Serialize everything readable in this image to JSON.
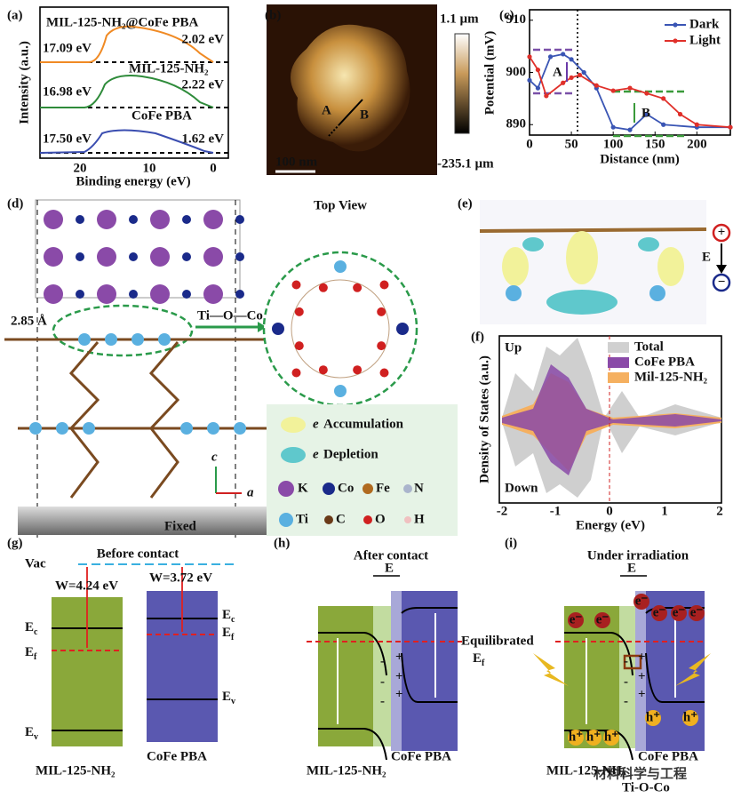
{
  "figure": {
    "panel_labels": [
      "(a)",
      "(b)",
      "(c)",
      "(d)",
      "(e)",
      "(f)",
      "(g)",
      "(h)",
      "(i)"
    ],
    "a": {
      "curves": [
        "MIL-125-NH₂@CoFe PBA",
        "MIL-125-NH₂",
        "CoFe PBA"
      ],
      "left_values": [
        "17.09 eV",
        "16.98 eV",
        "17.50 eV"
      ],
      "right_values": [
        "2.02 eV",
        "2.22 eV",
        "1.62 eV"
      ],
      "y_label": "Intensity (a.u.)",
      "x_label": "Binding energy (eV)",
      "x_ticks": [
        "20",
        "10",
        "0"
      ]
    },
    "b": {
      "colorbar_max": "1.1 µm",
      "colorbar_min": "-235.1 µm",
      "scale_bar": "100 nm",
      "marker_a": "A",
      "marker_b": "B"
    },
    "d": {
      "top_view": "Top View",
      "distance": "2.85 Å",
      "bond": "Ti—O—Co",
      "e": "e",
      "accumulation": "Accumulation",
      "depletion": "Depletion",
      "atoms": [
        "K",
        "Co",
        "Fe",
        "N",
        "Ti",
        "C",
        "O",
        "H"
      ],
      "fixed": "Fixed",
      "axis_c": "c",
      "axis_a": "a"
    },
    "e": {
      "field": "E",
      "plus": "+",
      "minus": "−"
    },
    "f": {
      "up": "Up",
      "down": "Down",
      "legend": [
        "Total",
        "CoFe PBA",
        "Mil-125-NH₂"
      ],
      "y_label": "Density of States (a.u.)",
      "x_label": "Energy (eV)",
      "x_ticks": [
        "-2",
        "-1",
        "0",
        "1",
        "2"
      ]
    },
    "g": {
      "title": "Before contact",
      "vac": "Vac",
      "w_left": "W=4.24 eV",
      "w_right": "W=3.72 eV",
      "ec": {
        "text": "E",
        "sub": "c"
      },
      "ef": {
        "text": "E",
        "sub": "f"
      },
      "ev": {
        "text": "E",
        "sub": "v"
      },
      "left": "MIL-125-NH₂",
      "right": "CoFe PBA"
    },
    "h": {
      "title": "After contact",
      "field": "E",
      "equilibrated": "Equilibrated",
      "ef": {
        "text": "E",
        "sub": "f"
      },
      "minus": "-",
      "plus": "+",
      "left": "MIL-125-NH₂",
      "right": "CoFe PBA"
    },
    "i": {
      "title": "Under irradiation",
      "field": "E",
      "electron": "e⁻",
      "hole": "h⁺",
      "minus": "-",
      "plus": "+",
      "left": "MIL-125-NH₂",
      "right": "CoFe PBA",
      "bond": "Ti-O-Co",
      "watermark": "材料科学与工程"
    }
  },
  "chart_data": {
    "type": "line",
    "x_label": "Distance (nm)",
    "y_label": "Potential (mV)",
    "xlim": [
      0,
      240
    ],
    "ylim": [
      888,
      912
    ],
    "xticks": [
      0,
      50,
      100,
      150,
      200
    ],
    "yticks": [
      890,
      900,
      910
    ],
    "legend": "upper right",
    "annotations": [
      "A",
      "B"
    ],
    "series": [
      {
        "name": "Dark",
        "color": "#3a55b4",
        "x": [
          0,
          10,
          25,
          40,
          50,
          65,
          80,
          100,
          120,
          140,
          160,
          200,
          240
        ],
        "values": [
          898.5,
          897,
          903,
          903.5,
          902.5,
          900,
          897,
          889.5,
          889,
          892,
          890,
          889.5,
          889.5
        ]
      },
      {
        "name": "Light",
        "color": "#e0302a",
        "x": [
          0,
          10,
          20,
          40,
          50,
          60,
          80,
          100,
          120,
          140,
          160,
          180,
          200,
          240
        ],
        "values": [
          903,
          900.5,
          895.5,
          898,
          899,
          899.5,
          897.5,
          896.5,
          897,
          896,
          895,
          892,
          890,
          889.5
        ]
      }
    ]
  }
}
